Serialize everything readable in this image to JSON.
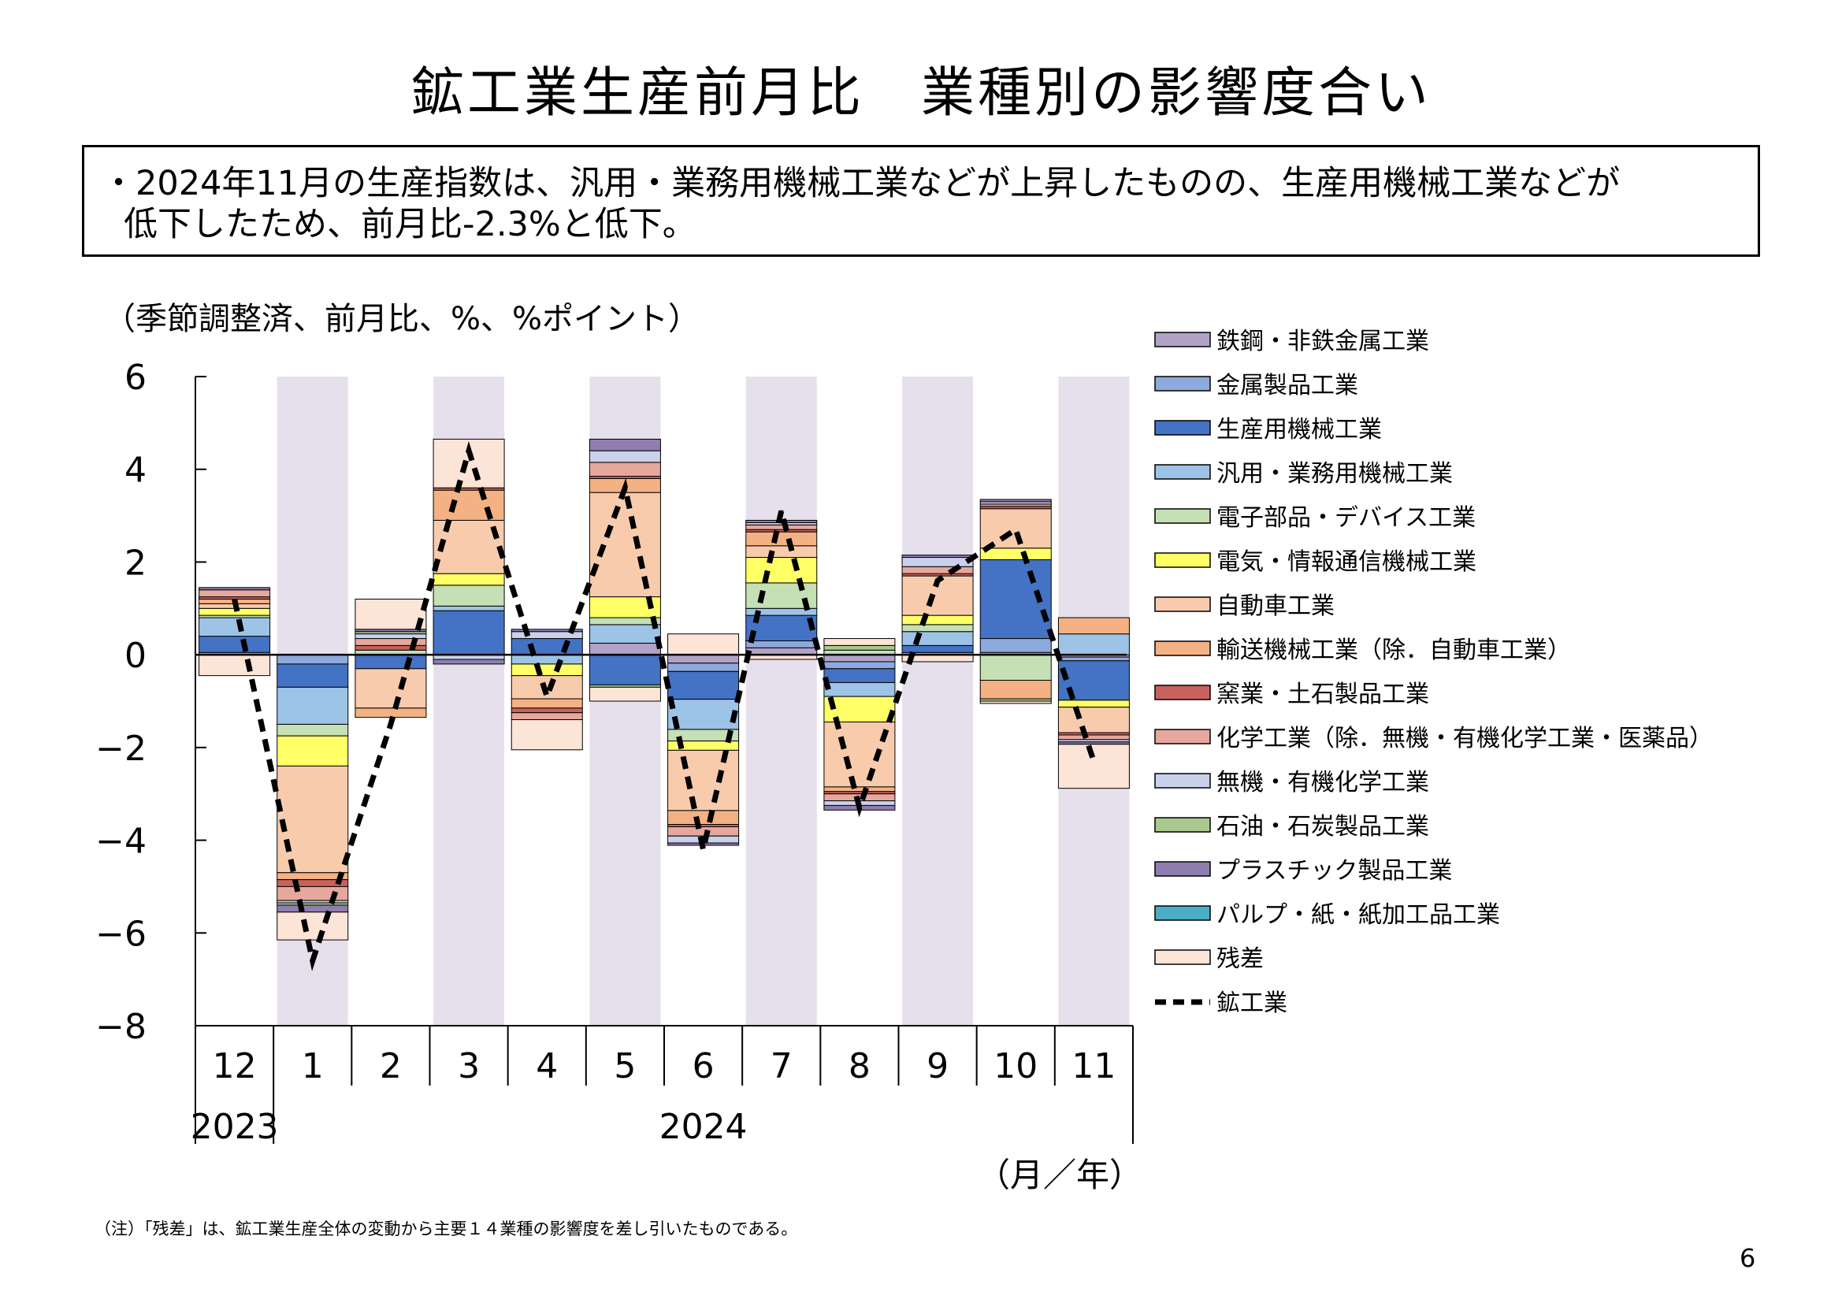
{
  "title": "鉱工業生産前月比　業種別の影響度合い",
  "summary": {
    "line1": "・2024年11月の生産指数は、汎用・業務用機械工業などが上昇したものの、生産用機械工業などが",
    "line2": "低下したため、前月比-2.3%と低下。"
  },
  "units_label": "（季節調整済、前月比、%、%ポイント）",
  "x_unit_label": "（月／年）",
  "footnote": "（注）「残差」は、鉱工業生産全体の変動から主要１４業種の影響度を差し引いたものである。",
  "page_number": "6",
  "chart_data": {
    "type": "bar",
    "stacked": true,
    "ylim": [
      -8,
      6
    ],
    "yticks": [
      -8,
      -6,
      -4,
      -2,
      0,
      2,
      4,
      6
    ],
    "categories": [
      "12",
      "1",
      "2",
      "3",
      "4",
      "5",
      "6",
      "7",
      "8",
      "9",
      "10",
      "11"
    ],
    "year_labels": [
      "2023",
      "2024"
    ],
    "shaded_months": [
      "1",
      "3",
      "5",
      "7",
      "9",
      "11"
    ],
    "shade_color": "#E5E0EC",
    "series": [
      {
        "name": "鉄鋼・非鉄金属工業",
        "color": "#B3A2C7",
        "values": [
          0.0,
          0.0,
          0.0,
          0.0,
          0.0,
          0.25,
          -0.18,
          0.15,
          -0.15,
          0.05,
          0.05,
          -0.05
        ]
      },
      {
        "name": "金属製品工業",
        "color": "#8EA9DB",
        "values": [
          0.05,
          -0.2,
          0.0,
          0.0,
          0.0,
          0.0,
          -0.18,
          0.15,
          -0.15,
          0.0,
          0.3,
          -0.08
        ]
      },
      {
        "name": "生産用機械工業",
        "color": "#4472C4",
        "values": [
          0.35,
          -0.5,
          -0.3,
          0.95,
          0.35,
          -0.65,
          -0.6,
          0.55,
          -0.3,
          0.15,
          1.7,
          -0.85
        ]
      },
      {
        "name": "汎用・業務用機械工業",
        "color": "#9DC3E6",
        "values": [
          0.4,
          -0.8,
          0.0,
          0.1,
          -0.2,
          0.4,
          -0.65,
          0.15,
          -0.3,
          0.3,
          0.0,
          0.45
        ]
      },
      {
        "name": "電子部品・デバイス工業",
        "color": "#C5E0B4",
        "values": [
          0.05,
          -0.25,
          0.1,
          0.45,
          0.0,
          0.15,
          -0.25,
          0.55,
          0.1,
          0.15,
          -0.55,
          0.0
        ]
      },
      {
        "name": "電気・情報通信機械工業",
        "color": "#FFFF66",
        "values": [
          0.15,
          -0.65,
          0.0,
          0.25,
          -0.25,
          0.45,
          -0.2,
          0.55,
          -0.55,
          0.2,
          0.25,
          -0.15
        ]
      },
      {
        "name": "自動車工業",
        "color": "#F8CBAD",
        "values": [
          0.1,
          -2.3,
          -0.85,
          1.15,
          -0.5,
          2.25,
          -1.3,
          0.25,
          -1.4,
          0.85,
          0.85,
          -0.55
        ]
      },
      {
        "name": "輸送機械工業（除．自動車工業）",
        "color": "#F4B183",
        "values": [
          0.1,
          -0.15,
          -0.2,
          0.65,
          -0.2,
          0.3,
          -0.3,
          0.3,
          -0.1,
          0.0,
          -0.4,
          0.35
        ]
      },
      {
        "name": "窯業・土石製品工業",
        "color": "#C9625C",
        "values": [
          0.05,
          -0.15,
          0.1,
          0.05,
          -0.1,
          0.05,
          -0.05,
          0.05,
          -0.05,
          0.05,
          0.05,
          -0.05
        ]
      },
      {
        "name": "化学工業（除．無機・有機化学工業・医薬品）",
        "color": "#E6A79D",
        "values": [
          0.15,
          -0.3,
          0.15,
          0.0,
          -0.15,
          0.3,
          -0.2,
          0.1,
          -0.15,
          0.15,
          0.05,
          -0.1
        ]
      },
      {
        "name": "無機・有機化学工業",
        "color": "#C9D1EC",
        "values": [
          0.0,
          -0.05,
          0.1,
          -0.1,
          0.15,
          0.25,
          -0.15,
          0.05,
          -0.1,
          0.2,
          0.05,
          -0.05
        ]
      },
      {
        "name": "石油・石炭製品工業",
        "color": "#A9C98E",
        "values": [
          0.0,
          -0.05,
          0.05,
          0.0,
          0.0,
          -0.05,
          0.0,
          0.0,
          0.1,
          0.0,
          -0.05,
          0.0
        ]
      },
      {
        "name": "プラスチック製品工業",
        "color": "#8F7DB0",
        "values": [
          0.05,
          -0.15,
          0.05,
          -0.1,
          0.05,
          0.25,
          -0.05,
          0.05,
          -0.1,
          0.05,
          0.05,
          -0.05
        ]
      },
      {
        "name": "パルプ・紙・紙加工品工業",
        "color": "#4BACC6",
        "values": [
          0.0,
          0.0,
          0.0,
          0.0,
          0.0,
          0.0,
          0.0,
          0.0,
          0.0,
          0.0,
          0.0,
          0.0
        ]
      },
      {
        "name": "残差",
        "color": "#FCE4D6",
        "values": [
          -0.45,
          -0.6,
          0.65,
          1.05,
          -0.65,
          -0.3,
          0.45,
          -0.1,
          0.15,
          -0.15,
          -0.05,
          -0.95
        ]
      }
    ],
    "line": {
      "name": "鉱工業",
      "values": [
        1.2,
        -6.6,
        -1.5,
        4.4,
        -0.9,
        3.6,
        -4.2,
        3.1,
        -3.3,
        1.6,
        2.7,
        -2.3
      ]
    },
    "legend_position": "right"
  }
}
